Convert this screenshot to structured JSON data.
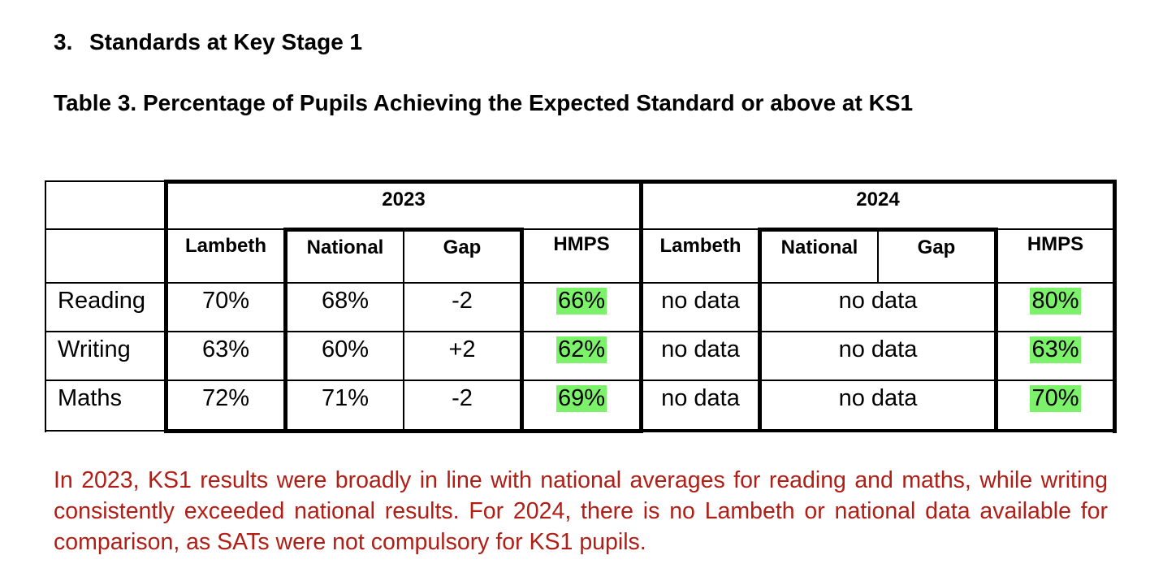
{
  "section": {
    "number": "3.",
    "title": "Standards at Key Stage 1"
  },
  "table_title": "Table 3. Percentage of Pupils Achieving the Expected Standard or above at KS1",
  "table": {
    "years": [
      "2023",
      "2024"
    ],
    "columns_2023": [
      "Lambeth",
      "National",
      "Gap",
      "HMPS"
    ],
    "columns_2024": [
      "Lambeth",
      "National",
      "Gap",
      "HMPS"
    ],
    "rows": [
      {
        "subject": "Reading",
        "y2023": {
          "lambeth": "70%",
          "national": "68%",
          "gap": "-2",
          "hmps": "66%"
        },
        "y2024": {
          "lambeth": "no data",
          "national_gap": "no data",
          "hmps": "80%"
        }
      },
      {
        "subject": "Writing",
        "y2023": {
          "lambeth": "63%",
          "national": "60%",
          "gap": "+2",
          "hmps": "62%"
        },
        "y2024": {
          "lambeth": "no data",
          "national_gap": "no data",
          "hmps": "63%"
        }
      },
      {
        "subject": "Maths",
        "y2023": {
          "lambeth": "72%",
          "national": "71%",
          "gap": "-2",
          "hmps": "69%"
        },
        "y2024": {
          "lambeth": "no data",
          "national_gap": "no data",
          "hmps": "70%"
        }
      }
    ],
    "highlight_color": "#7cf26a"
  },
  "note": "In 2023, KS1 results were broadly in line with national averages for reading and maths, while writing consistently exceeded national results. For 2024, there is no Lambeth or national data available for comparison, as SATs were not compulsory for KS1 pupils.",
  "note_color": "#b01e16"
}
